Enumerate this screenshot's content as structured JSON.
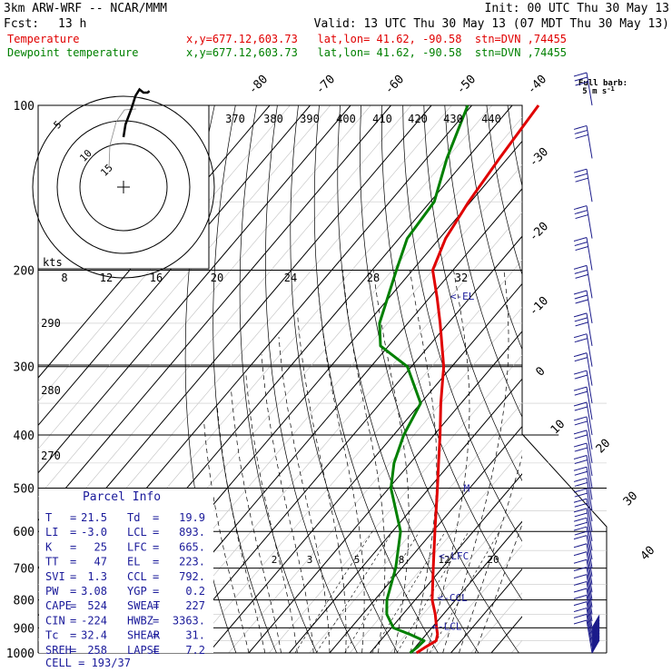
{
  "header": {
    "model": "3km ARW-WRF -- NCAR/MMM",
    "init": "Init: 00 UTC Thu 30 May 13",
    "fcst_label": "Fcst:",
    "fcst_value": "13 h",
    "valid": "Valid: 13 UTC Thu 30 May 13 (07 MDT Thu 30 May 13)",
    "series": [
      {
        "name": "Temperature",
        "info": "x,y=677.12,603.73   lat,lon= 41.62, -90.58  stn=DVN ,74455",
        "color": "#e00000"
      },
      {
        "name": "Dewpoint temperature",
        "info": "x,y=677.12,603.73   lat,lon= 41.62, -90.58  stn=DVN ,74455",
        "color": "#008000"
      }
    ]
  },
  "chart_data": {
    "type": "skew-t",
    "pressure_levels": [
      100,
      200,
      300,
      400,
      500,
      600,
      700,
      800,
      900,
      1000
    ],
    "temperature_labels": [
      "-80",
      "-70",
      "-60",
      "-50",
      "-40",
      "-30",
      "-20",
      "-10",
      "0",
      "10",
      "20",
      "30",
      "40"
    ],
    "theta_e_labels": [
      "370",
      "380",
      "390",
      "400",
      "410",
      "420",
      "430",
      "440"
    ],
    "theta_e_left_labels": [
      "290",
      "280",
      "270"
    ],
    "hodograph": {
      "ring_labels": [
        "5",
        "10",
        "15"
      ],
      "speed_axis_label": "kts",
      "speed_ticks": [
        "8",
        "12",
        "16",
        "20",
        "24",
        "28",
        "32"
      ],
      "trace": [
        [
          0,
          12
        ],
        [
          1,
          20
        ],
        [
          4,
          30
        ],
        [
          6,
          38
        ],
        [
          8,
          42
        ],
        [
          10,
          40
        ],
        [
          12,
          40
        ],
        [
          13,
          41
        ]
      ]
    },
    "mixing_ratio_labels": [
      "2",
      "3",
      "5",
      "8",
      "12",
      "20"
    ],
    "temperature": {
      "name": "Temperature",
      "color": "#e00000",
      "points": [
        [
          1000,
          21.5
        ],
        [
          975,
          22.5
        ],
        [
          950,
          23.8
        ],
        [
          925,
          22.8
        ],
        [
          900,
          21.2
        ],
        [
          850,
          18.0
        ],
        [
          800,
          14.2
        ],
        [
          700,
          7.8
        ],
        [
          600,
          0.5
        ],
        [
          500,
          -8.0
        ],
        [
          450,
          -13.0
        ],
        [
          400,
          -18.5
        ],
        [
          350,
          -25.0
        ],
        [
          300,
          -32.0
        ],
        [
          250,
          -42.0
        ],
        [
          225,
          -48.0
        ],
        [
          200,
          -55.0
        ],
        [
          175,
          -58.5
        ],
        [
          150,
          -60.5
        ],
        [
          125,
          -62.0
        ],
        [
          100,
          -63.5
        ]
      ]
    },
    "dewpoint": {
      "name": "Dewpoint temperature",
      "color": "#008000",
      "points": [
        [
          1000,
          19.9
        ],
        [
          975,
          20.5
        ],
        [
          950,
          20.8
        ],
        [
          925,
          16.0
        ],
        [
          900,
          10.5
        ],
        [
          850,
          6.0
        ],
        [
          800,
          3.0
        ],
        [
          700,
          -1.5
        ],
        [
          600,
          -8.0
        ],
        [
          500,
          -19.5
        ],
        [
          450,
          -24.0
        ],
        [
          400,
          -27.5
        ],
        [
          350,
          -30.0
        ],
        [
          300,
          -41.0
        ],
        [
          275,
          -52.0
        ],
        [
          250,
          -57.0
        ],
        [
          200,
          -64.0
        ],
        [
          175,
          -68.0
        ],
        [
          150,
          -69.0
        ],
        [
          125,
          -75.0
        ],
        [
          100,
          -81.0
        ]
      ]
    },
    "markers": [
      {
        "label": "<-EL",
        "p": 223,
        "t": -45.2
      },
      {
        "label": "<-LFC",
        "p": 665,
        "t": 6.6
      },
      {
        "label": "<-CCL",
        "p": 792,
        "t": 15.0
      },
      {
        "label": "<-LCL",
        "p": 893,
        "t": 19.6
      },
      {
        "label": "M",
        "p": 500,
        "t": -1.5
      }
    ],
    "full_barb_label": "Full barb:",
    "full_barb_value": "5 m s",
    "full_barb_exp": "-1",
    "parcel_info": {
      "title": "Parcel Info",
      "rows": [
        [
          {
            "k": "T",
            "v": "21.5"
          },
          {
            "k": "Td",
            "v": "19.9"
          }
        ],
        [
          {
            "k": "LI",
            "v": "-3.0"
          },
          {
            "k": "LCL",
            "v": "893."
          }
        ],
        [
          {
            "k": "K",
            "v": "25"
          },
          {
            "k": "LFC",
            "v": "665."
          }
        ],
        [
          {
            "k": "TT",
            "v": "47"
          },
          {
            "k": "EL",
            "v": "223."
          }
        ],
        [
          {
            "k": "SVI",
            "v": "1.3"
          },
          {
            "k": "CCL",
            "v": "792."
          }
        ],
        [
          {
            "k": "PW",
            "v": "3.08"
          },
          {
            "k": "YGP",
            "v": "0.2"
          }
        ],
        [
          {
            "k": "CAPE",
            "v": "524"
          },
          {
            "k": "SWEAT",
            "v": "227"
          }
        ],
        [
          {
            "k": "CIN",
            "v": "-224"
          },
          {
            "k": "HWBZ",
            "v": "3363."
          }
        ],
        [
          {
            "k": "Tc",
            "v": "32.4"
          },
          {
            "k": "SHEAR",
            "v": "31."
          }
        ],
        [
          {
            "k": "SREH",
            "v": "258"
          },
          {
            "k": "LAPSE",
            "v": "7.2"
          }
        ]
      ],
      "cell": {
        "k": "CELL",
        "v": "193/37"
      }
    }
  }
}
